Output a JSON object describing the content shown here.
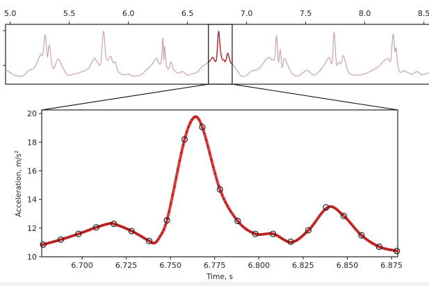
{
  "chart_data": [
    {
      "type": "line",
      "role": "overview",
      "xlim": [
        4.96,
        8.56
      ],
      "ylim": [
        4.6,
        21.8
      ],
      "xticks": [
        "5.0",
        "5.5",
        "6.0",
        "6.5",
        "7.0",
        "7.5",
        "8.0",
        "8.5"
      ],
      "xtick_values": [
        5.0,
        5.5,
        6.0,
        6.5,
        7.0,
        7.5,
        8.0,
        8.5
      ],
      "ytick_values": [
        10,
        20
      ],
      "xaxis_position": "top",
      "highlight_range": [
        6.677,
        6.8785
      ],
      "line_color": "#c9a3a6",
      "highlight_color": "#b0262c",
      "points": [
        [
          4.963,
          8.8
        ],
        [
          5.032,
          7.3
        ],
        [
          5.1,
          6.9
        ],
        [
          5.15,
          8.3
        ],
        [
          5.21,
          9.6
        ],
        [
          5.257,
          13.1
        ],
        [
          5.277,
          13.3
        ],
        [
          5.296,
          18.8
        ],
        [
          5.316,
          12.5
        ],
        [
          5.33,
          15.9
        ],
        [
          5.35,
          11.1
        ],
        [
          5.369,
          9.1
        ],
        [
          5.404,
          11.8
        ],
        [
          5.443,
          9.5
        ],
        [
          5.483,
          7.3
        ],
        [
          5.54,
          7.5
        ],
        [
          5.6,
          8.1
        ],
        [
          5.66,
          9.1
        ],
        [
          5.714,
          12.0
        ],
        [
          5.738,
          10.9
        ],
        [
          5.767,
          10.8
        ],
        [
          5.79,
          19.8
        ],
        [
          5.81,
          12.5
        ],
        [
          5.826,
          11.5
        ],
        [
          5.85,
          12.6
        ],
        [
          5.87,
          10.8
        ],
        [
          5.89,
          11.0
        ],
        [
          5.91,
          8.5
        ],
        [
          5.96,
          7.3
        ],
        [
          6.0,
          7.5
        ],
        [
          6.03,
          7.0
        ],
        [
          6.1,
          7.2
        ],
        [
          6.15,
          8.6
        ],
        [
          6.2,
          10.3
        ],
        [
          6.24,
          12.0
        ],
        [
          6.26,
          10.5
        ],
        [
          6.28,
          11.5
        ],
        [
          6.292,
          18.0
        ],
        [
          6.3,
          11.5
        ],
        [
          6.306,
          15.5
        ],
        [
          6.32,
          10.5
        ],
        [
          6.34,
          9.0
        ],
        [
          6.36,
          11.0
        ],
        [
          6.38,
          9.0
        ],
        [
          6.42,
          7.8
        ],
        [
          6.46,
          8.2
        ],
        [
          6.5,
          7.2
        ],
        [
          6.54,
          7.6
        ],
        [
          6.58,
          8.0
        ],
        [
          6.62,
          9.5
        ],
        [
          6.65,
          10.3
        ],
        [
          6.677,
          10.85
        ],
        [
          6.697,
          11.6
        ],
        [
          6.715,
          12.3
        ],
        [
          6.737,
          11.1
        ],
        [
          6.748,
          12.55
        ],
        [
          6.758,
          18.2
        ],
        [
          6.7635,
          19.75
        ],
        [
          6.768,
          19.05
        ],
        [
          6.778,
          14.7
        ],
        [
          6.788,
          12.5
        ],
        [
          6.798,
          11.6
        ],
        [
          6.808,
          11.6
        ],
        [
          6.818,
          11.05
        ],
        [
          6.828,
          11.85
        ],
        [
          6.8395,
          13.48
        ],
        [
          6.848,
          12.85
        ],
        [
          6.858,
          11.5
        ],
        [
          6.868,
          10.7
        ],
        [
          6.878,
          10.4
        ],
        [
          6.9,
          9.5
        ],
        [
          6.93,
          8.0
        ],
        [
          6.96,
          6.8
        ],
        [
          7.0,
          7.2
        ],
        [
          7.05,
          8.5
        ],
        [
          7.1,
          9.0
        ],
        [
          7.15,
          11.0
        ],
        [
          7.19,
          12.3
        ],
        [
          7.22,
          11.5
        ],
        [
          7.24,
          12.5
        ],
        [
          7.253,
          18.5
        ],
        [
          7.27,
          11.0
        ],
        [
          7.285,
          14.5
        ],
        [
          7.3,
          9.5
        ],
        [
          7.32,
          12.0
        ],
        [
          7.35,
          10.0
        ],
        [
          7.39,
          7.5
        ],
        [
          7.44,
          7.0
        ],
        [
          7.48,
          8.0
        ],
        [
          7.52,
          8.5
        ],
        [
          7.56,
          7.3
        ],
        [
          7.6,
          7.8
        ],
        [
          7.66,
          10.3
        ],
        [
          7.7,
          12.3
        ],
        [
          7.725,
          11.0
        ],
        [
          7.74,
          19.5
        ],
        [
          7.76,
          10.5
        ],
        [
          7.78,
          11.0
        ],
        [
          7.8,
          10.5
        ],
        [
          7.82,
          12.8
        ],
        [
          7.85,
          9.0
        ],
        [
          7.88,
          7.5
        ],
        [
          7.94,
          7.2
        ],
        [
          8.0,
          7.6
        ],
        [
          8.06,
          8.5
        ],
        [
          8.12,
          9.8
        ],
        [
          8.17,
          11.5
        ],
        [
          8.2,
          12.0
        ],
        [
          8.22,
          11.5
        ],
        [
          8.24,
          19.0
        ],
        [
          8.255,
          14.0
        ],
        [
          8.265,
          15.0
        ],
        [
          8.28,
          10.0
        ],
        [
          8.3,
          8.0
        ],
        [
          8.33,
          8.5
        ],
        [
          8.36,
          8.0
        ],
        [
          8.4,
          7.5
        ],
        [
          8.44,
          8.2
        ],
        [
          8.48,
          7.4
        ],
        [
          8.52,
          7.6
        ],
        [
          8.55,
          8.0
        ]
      ]
    },
    {
      "type": "line",
      "role": "detail",
      "xlabel": "Time, s",
      "ylabel": "Acceleration, m/s",
      "ylabel_superscript": "2",
      "xlim": [
        6.6772,
        6.8785
      ],
      "ylim": [
        10,
        20.25
      ],
      "xticks": [
        "6.700",
        "6.725",
        "6.750",
        "6.775",
        "6.800",
        "6.825",
        "6.850",
        "6.875"
      ],
      "xtick_values": [
        6.7,
        6.725,
        6.75,
        6.775,
        6.8,
        6.825,
        6.85,
        6.875
      ],
      "yticks": [
        "10",
        "12",
        "14",
        "16",
        "18",
        "20"
      ],
      "ytick_values": [
        10,
        12,
        14,
        16,
        18,
        20
      ],
      "grid": false,
      "line_color": "#d62728",
      "dot_color": "#b22222",
      "marker_color": "#222222",
      "curve": [
        [
          6.6772,
          10.82
        ],
        [
          6.678,
          10.85
        ],
        [
          6.688,
          11.2
        ],
        [
          6.698,
          11.6
        ],
        [
          6.708,
          12.05
        ],
        [
          6.7155,
          12.32
        ],
        [
          6.718,
          12.3
        ],
        [
          6.728,
          11.8
        ],
        [
          6.738,
          11.1
        ],
        [
          6.7405,
          10.95
        ],
        [
          6.743,
          11.2
        ],
        [
          6.748,
          12.55
        ],
        [
          6.758,
          18.2
        ],
        [
          6.7635,
          19.75
        ],
        [
          6.768,
          19.05
        ],
        [
          6.778,
          14.7
        ],
        [
          6.788,
          12.5
        ],
        [
          6.798,
          11.6
        ],
        [
          6.808,
          11.6
        ],
        [
          6.8185,
          11.02
        ],
        [
          6.828,
          11.85
        ],
        [
          6.8395,
          13.48
        ],
        [
          6.848,
          12.85
        ],
        [
          6.858,
          11.5
        ],
        [
          6.868,
          10.7
        ],
        [
          6.878,
          10.4
        ],
        [
          6.8785,
          10.39
        ]
      ],
      "samples": [
        [
          6.678,
          10.85
        ],
        [
          6.688,
          11.2
        ],
        [
          6.698,
          11.6
        ],
        [
          6.708,
          12.05
        ],
        [
          6.718,
          12.3
        ],
        [
          6.728,
          11.8
        ],
        [
          6.738,
          11.1
        ],
        [
          6.748,
          12.55
        ],
        [
          6.758,
          18.2
        ],
        [
          6.768,
          19.05
        ],
        [
          6.778,
          14.7
        ],
        [
          6.788,
          12.5
        ],
        [
          6.798,
          11.6
        ],
        [
          6.808,
          11.6
        ],
        [
          6.818,
          11.05
        ],
        [
          6.828,
          11.85
        ],
        [
          6.838,
          13.45
        ],
        [
          6.848,
          12.85
        ],
        [
          6.858,
          11.5
        ],
        [
          6.868,
          10.7
        ],
        [
          6.878,
          10.4
        ]
      ]
    }
  ]
}
